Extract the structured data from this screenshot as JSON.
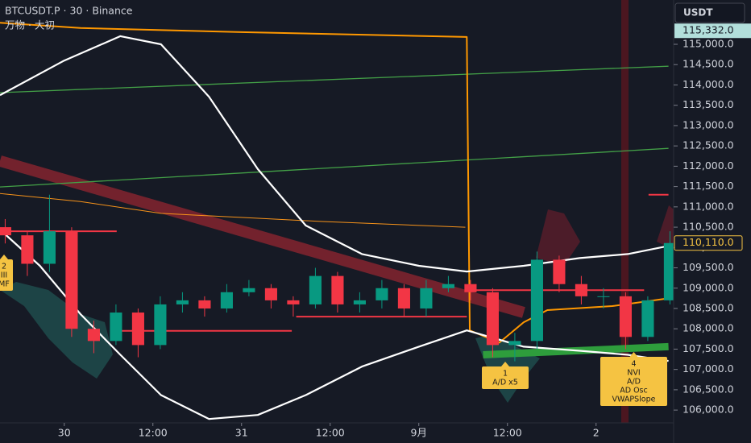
{
  "chart_data": {
    "type": "candlestick",
    "title": "BTCUSDT.P · 30 · Binance",
    "subtitle": "万物 · 大初",
    "currency_button": "USDT",
    "xlim": [
      -8.7,
      82.5
    ],
    "xticks": [
      {
        "value": 0,
        "label": "30"
      },
      {
        "value": 12,
        "label": "12:00"
      },
      {
        "value": 24,
        "label": "31"
      },
      {
        "value": 36,
        "label": "12:00"
      },
      {
        "value": 48,
        "label": "9月"
      },
      {
        "value": 60,
        "label": "12:00"
      },
      {
        "value": 72,
        "label": "2"
      }
    ],
    "ylim": [
      105190,
      116090
    ],
    "yticks": [
      {
        "value": 106000,
        "label": "106,000.0"
      },
      {
        "value": 106500,
        "label": "106,500.0"
      },
      {
        "value": 107000,
        "label": "107,000.0"
      },
      {
        "value": 107500,
        "label": "107,500.0"
      },
      {
        "value": 108000,
        "label": "108,000.0"
      },
      {
        "value": 108500,
        "label": "108,500.0"
      },
      {
        "value": 109000,
        "label": "109,000.0"
      },
      {
        "value": 109500,
        "label": "109,500.0"
      },
      {
        "value": 110000,
        "label": "110,000.0"
      },
      {
        "value": 110500,
        "label": "110,500.0"
      },
      {
        "value": 111000,
        "label": "111,000.0"
      },
      {
        "value": 111500,
        "label": "111,500.0"
      },
      {
        "value": 112000,
        "label": "112,000.0"
      },
      {
        "value": 112500,
        "label": "112,500.0"
      },
      {
        "value": 113000,
        "label": "113,000.0"
      },
      {
        "value": 113500,
        "label": "113,500.0"
      },
      {
        "value": 114000,
        "label": "114,000.0"
      },
      {
        "value": 114500,
        "label": "114,500.0"
      },
      {
        "value": 115000,
        "label": "115,000.0"
      }
    ],
    "up_color": "#089981",
    "down_color": "#f23645",
    "candles": {
      "x": [
        -8,
        -5,
        -2,
        1,
        4,
        7,
        10,
        13,
        16,
        19,
        22,
        25,
        28,
        31,
        34,
        37,
        40,
        43,
        46,
        49,
        52,
        55,
        58,
        61,
        64,
        67,
        70,
        73,
        76,
        79,
        82
      ],
      "open": [
        110500,
        110300,
        109600,
        110400,
        108000,
        107700,
        108400,
        107600,
        108600,
        108700,
        108500,
        108900,
        109000,
        108700,
        108600,
        109300,
        108600,
        108700,
        109000,
        108500,
        109000,
        109100,
        108900,
        107600,
        107700,
        109700,
        109100,
        108800,
        108800,
        107800,
        108700
      ],
      "high": [
        110700,
        110400,
        111300,
        110500,
        108200,
        108600,
        108500,
        108800,
        108900,
        108800,
        109100,
        109200,
        109100,
        108800,
        109500,
        109400,
        108900,
        109200,
        109100,
        109200,
        109300,
        109200,
        109000,
        107900,
        109900,
        109800,
        109300,
        109000,
        108900,
        108800,
        110400
      ],
      "low": [
        110100,
        109300,
        109400,
        107800,
        107400,
        107600,
        107300,
        107500,
        108400,
        108300,
        108400,
        108800,
        108500,
        108300,
        108500,
        108400,
        108400,
        108500,
        108300,
        108300,
        108900,
        108700,
        107300,
        107200,
        107500,
        108900,
        108600,
        108500,
        107500,
        107700,
        108600
      ],
      "close": [
        110300,
        109600,
        110400,
        108000,
        107700,
        108400,
        107600,
        108600,
        108700,
        108500,
        108900,
        109000,
        108700,
        108600,
        109300,
        108600,
        108700,
        109000,
        108500,
        109000,
        109100,
        108900,
        107600,
        107700,
        109700,
        109100,
        108800,
        108800,
        107800,
        108700,
        110110
      ]
    },
    "overlays": [
      {
        "color": "rgba(178,40,51,0.6)",
        "width": 14,
        "x": [
          -8.7,
          62.2
        ],
        "values": [
          112130,
          108400
        ]
      },
      {
        "color": "#43a047",
        "width": 1.3,
        "x": [
          -8.7,
          81.8
        ],
        "values": [
          113810,
          114460
        ]
      },
      {
        "color": "#43a047",
        "width": 1.3,
        "x": [
          -8.7,
          81.8
        ],
        "values": [
          111490,
          112440
        ]
      },
      {
        "color": "#2e9d3c",
        "width": 9,
        "x": [
          56.7,
          81.8
        ],
        "values": [
          107360,
          107560
        ]
      },
      {
        "color": "#f7931a",
        "width": 1,
        "x": [
          -8.7,
          2.2,
          13.1,
          34.9,
          54.3
        ],
        "values": [
          111330,
          111130,
          110840,
          110640,
          110500
        ]
      },
      {
        "color": "#ff9800",
        "width": 2,
        "x": [
          -8.7,
          2.2,
          24,
          54.5,
          54.9,
          58.9,
          62.2,
          65.4,
          74.2,
          81.8
        ],
        "values": [
          115530,
          115400,
          115300,
          115180,
          107960,
          107660,
          108160,
          108460,
          108560,
          108750
        ]
      },
      {
        "color": "#ffffff",
        "width": 2.2,
        "x": [
          -8.7,
          0,
          7.6,
          13.1,
          19.6,
          26.2,
          32.7,
          40.3,
          48,
          54.5,
          62.2,
          69.8,
          76.3,
          81.8
        ],
        "values": [
          113750,
          114600,
          115200,
          115000,
          113710,
          111930,
          110540,
          109840,
          109550,
          109410,
          109550,
          109740,
          109840,
          110040
        ]
      },
      {
        "color": "#ffffff",
        "width": 2.2,
        "x": [
          -8.7,
          -3.3,
          2.2,
          7.6,
          13.1,
          19.6,
          26.2,
          32.7,
          40.3,
          48,
          54.5,
          62.2,
          69.8,
          76.3,
          81.8
        ],
        "values": [
          110440,
          109550,
          108360,
          107360,
          106370,
          105780,
          105880,
          106370,
          107070,
          107560,
          107960,
          107560,
          107460,
          107360,
          107210
        ]
      }
    ],
    "levels": [
      {
        "x": [
          -8.7,
          7.1
        ],
        "value": 110400
      },
      {
        "x": [
          7.6,
          30.8
        ],
        "value": 107950
      },
      {
        "x": [
          31.4,
          54.5
        ],
        "value": 108300
      },
      {
        "x": [
          55.1,
          78.5
        ],
        "value": 108950
      },
      {
        "x": [
          79.1,
          81.8
        ],
        "value": 111300
      }
    ],
    "last_price": {
      "value": 110110,
      "label": "110,110.0"
    },
    "high_price": {
      "value": 115332,
      "label": "115,332.0"
    },
    "annotations": [
      {
        "lines": [
          "2",
          "III",
          "MF"
        ]
      },
      {
        "lines": [
          "1",
          "A/D x5"
        ]
      },
      {
        "lines": [
          "4",
          "NVI",
          "A/D",
          "AD Osc",
          "VWAPSlope"
        ]
      }
    ]
  }
}
